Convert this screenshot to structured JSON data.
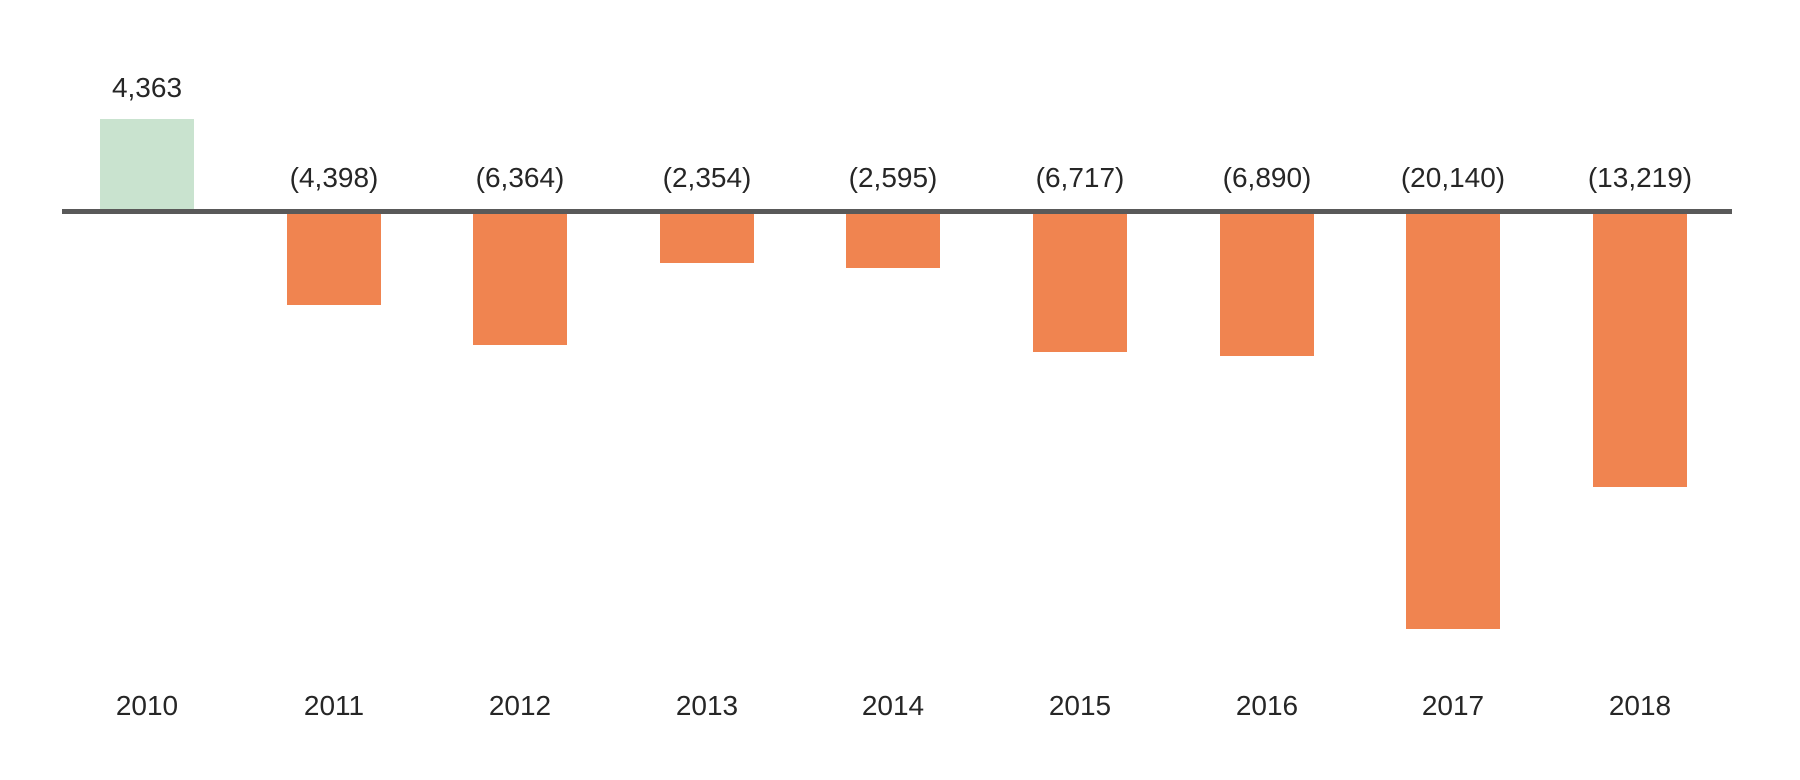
{
  "chart_data": {
    "type": "bar",
    "title": "",
    "xlabel": "",
    "ylabel": "",
    "grid": false,
    "legend": false,
    "categories": [
      "2010",
      "2011",
      "2012",
      "2013",
      "2014",
      "2015",
      "2016",
      "2017",
      "2018"
    ],
    "values": [
      4363,
      -4398,
      -6364,
      -2354,
      -2595,
      -6717,
      -6890,
      -20140,
      -13219
    ],
    "labels": [
      "4,363",
      "(4,398)",
      "(6,364)",
      "(2,354)",
      "(2,595)",
      "(6,717)",
      "(6,890)",
      "(20,140)",
      "(13,219)"
    ],
    "ylim": [
      -21000,
      5000
    ],
    "colors": {
      "positive_bar": "#c9e3cf",
      "negative_bar": "#f08450",
      "axis_line": "#595959",
      "text": "#262626"
    }
  }
}
